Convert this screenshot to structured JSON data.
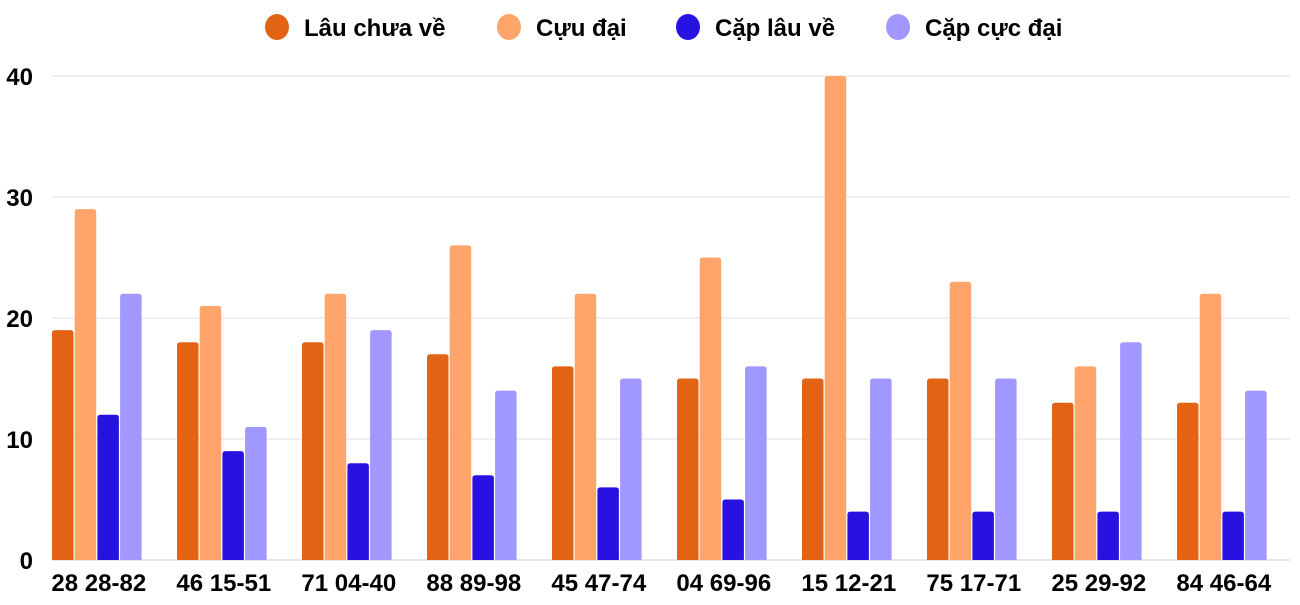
{
  "chart_data": {
    "type": "bar",
    "title": "",
    "xlabel": "",
    "ylabel": "",
    "ylim": [
      0,
      40
    ],
    "yticks": [
      0,
      10,
      20,
      30,
      40
    ],
    "grid": true,
    "legend_position": "top",
    "categories": [
      "28 28-82",
      "46 15-51",
      "71 04-40",
      "88 89-98",
      "45 47-74",
      "04 69-96",
      "15 12-21",
      "75 17-71",
      "25 29-92",
      "84 46-64"
    ],
    "series": [
      {
        "name": "Lâu chưa về",
        "color": "#e26314",
        "values": [
          19,
          18,
          18,
          17,
          16,
          15,
          15,
          15,
          13,
          13
        ]
      },
      {
        "name": "Cựu đại",
        "color": "#ffa46a",
        "values": [
          29,
          21,
          22,
          26,
          22,
          25,
          40,
          23,
          16,
          22
        ]
      },
      {
        "name": "Cặp lâu về",
        "color": "#2812e2",
        "values": [
          12,
          9,
          8,
          7,
          6,
          5,
          4,
          4,
          4,
          4
        ]
      },
      {
        "name": "Cặp cực đại",
        "color": "#a098fe",
        "values": [
          22,
          11,
          19,
          14,
          15,
          16,
          15,
          15,
          18,
          14
        ]
      }
    ]
  }
}
